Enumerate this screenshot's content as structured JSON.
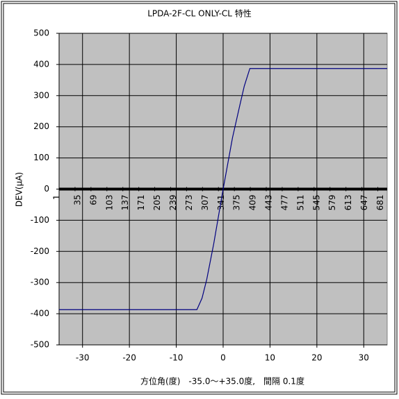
{
  "chart_data": {
    "type": "line",
    "title": "LPDA-2F-CL ONLY-CL 特性",
    "x_label": "方位角(度)　-35.0～+35.0度,　間隔 0.1度",
    "y_label": "DEV(μA)",
    "xlim": [
      -35,
      35
    ],
    "xticks": [
      -30,
      -20,
      -10,
      0,
      10,
      20,
      30
    ],
    "ylim": [
      -500,
      500
    ],
    "yticks": [
      -500,
      -400,
      -300,
      -200,
      -100,
      0,
      100,
      200,
      300,
      400,
      500
    ],
    "grid": true,
    "index_lim": [
      1,
      701
    ],
    "index_ticks": [
      1,
      35,
      69,
      103,
      137,
      171,
      205,
      239,
      273,
      307,
      341,
      375,
      409,
      443,
      477,
      511,
      545,
      579,
      613,
      647,
      681
    ],
    "series": [
      {
        "color": "#000080",
        "x": [
          -35,
          -5.6,
          -4.5,
          -3.5,
          -2,
          0,
          2,
          3.5,
          4.5,
          5.7,
          35
        ],
        "values": [
          -387,
          -387,
          -350,
          -290,
          -175,
          0,
          165,
          265,
          330,
          387,
          387
        ]
      }
    ]
  }
}
